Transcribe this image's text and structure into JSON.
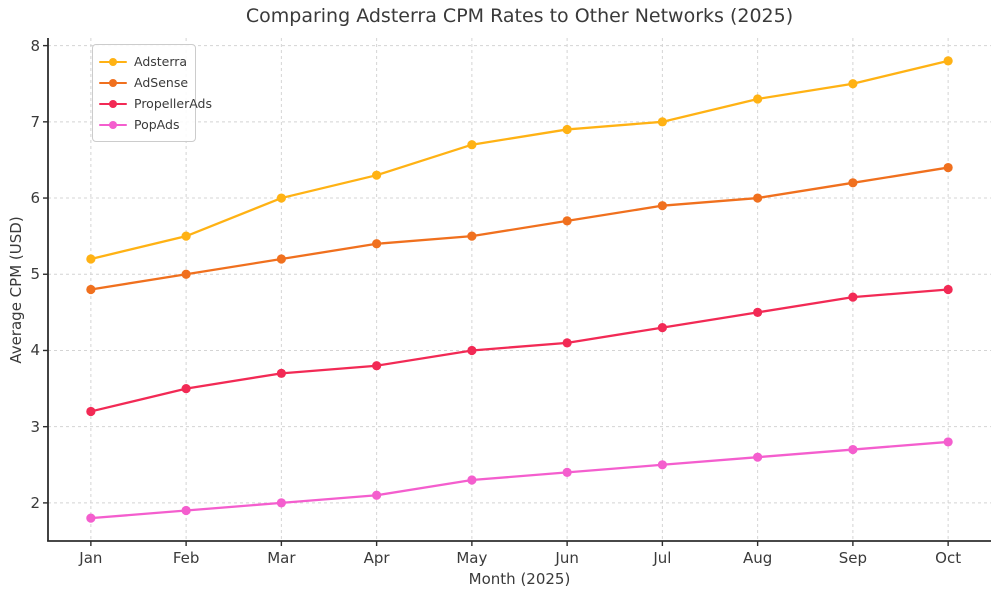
{
  "chart_data": {
    "type": "line",
    "title": "Comparing Adsterra CPM Rates to Other Networks (2025)",
    "xlabel": "Month (2025)",
    "ylabel": "Average CPM (USD)",
    "categories": [
      "Jan",
      "Feb",
      "Mar",
      "Apr",
      "May",
      "Jun",
      "Jul",
      "Aug",
      "Sep",
      "Oct"
    ],
    "yticks": [
      2,
      3,
      4,
      5,
      6,
      7,
      8
    ],
    "ylim": [
      1.5,
      8.1
    ],
    "x_margin": 0.45,
    "grid": "dashed both axes",
    "grid_color": "#d4d4d4",
    "spine_color": "#2e2e2e",
    "text_color": "#3a3a3a",
    "legend_position": "upper-left",
    "series": [
      {
        "name": "Adsterra",
        "color": "#FFB214",
        "values": [
          5.2,
          5.5,
          6.0,
          6.3,
          6.7,
          6.9,
          7.0,
          7.3,
          7.5,
          7.8
        ]
      },
      {
        "name": "AdSense",
        "color": "#F0701E",
        "values": [
          4.8,
          5.0,
          5.2,
          5.4,
          5.5,
          5.7,
          5.9,
          6.0,
          6.2,
          6.4
        ]
      },
      {
        "name": "PropellerAds",
        "color": "#F22A55",
        "values": [
          3.2,
          3.5,
          3.7,
          3.8,
          4.0,
          4.1,
          4.3,
          4.5,
          4.7,
          4.8
        ]
      },
      {
        "name": "PopAds",
        "color": "#F45ECE",
        "values": [
          1.8,
          1.9,
          2.0,
          2.1,
          2.3,
          2.4,
          2.5,
          2.6,
          2.7,
          2.8
        ]
      }
    ]
  }
}
